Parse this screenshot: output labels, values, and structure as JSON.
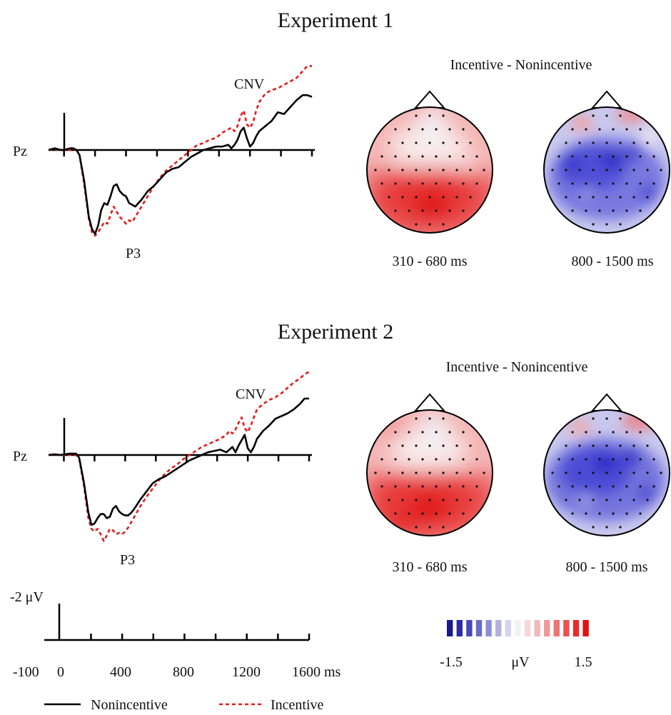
{
  "colors": {
    "nonincentive": "#000000",
    "incentive": "#e41a1c",
    "scale": [
      "#1a1a8c",
      "#2c2ca4",
      "#4848b8",
      "#6a6ac8",
      "#8e8ed6",
      "#b2b2e2",
      "#d4d4ee",
      "#f2f2f4",
      "#f4d8d8",
      "#f2b8b8",
      "#f09898",
      "#ee7474",
      "#ec5050",
      "#e82c2c",
      "#e41010"
    ]
  },
  "legend": {
    "non_label": "Nonincentive",
    "inc_label": "Incentive"
  },
  "scale_bar": {
    "voltage_label": "-2 μV",
    "tick_labels": [
      "-100",
      "0",
      "400",
      "800",
      "1200",
      "1600 ms"
    ]
  },
  "colorbar": {
    "min_label": "-1.5",
    "unit_label": "μV",
    "max_label": "1.5"
  },
  "chart_data": [
    {
      "type": "line",
      "title": "Experiment 1",
      "channel": "Pz",
      "xlim": [
        -100,
        1600
      ],
      "annotations": [
        "CNV",
        "P3"
      ],
      "series": [
        {
          "name": "Nonincentive",
          "x": [
            -100,
            -60,
            -20,
            0,
            20,
            40,
            60,
            80,
            100,
            130,
            160,
            180,
            200,
            220,
            240,
            260,
            280,
            300,
            320,
            340,
            360,
            380,
            400,
            420,
            440,
            460,
            480,
            500,
            540,
            580,
            620,
            660,
            700,
            740,
            780,
            820,
            860,
            900,
            940,
            980,
            1020,
            1060,
            1080,
            1100,
            1120,
            1140,
            1160,
            1180,
            1200,
            1220,
            1240,
            1260,
            1300,
            1340,
            1380,
            1420,
            1460,
            1500,
            1540,
            1570,
            1600
          ],
          "y": [
            0,
            0.1,
            0,
            0,
            0.05,
            0.1,
            0.1,
            0,
            -0.3,
            -1.8,
            -3.9,
            -4.6,
            -4.9,
            -4.4,
            -3.5,
            -3.1,
            -3.2,
            -2.7,
            -2.1,
            -2,
            -2.4,
            -2.6,
            -2.7,
            -3.1,
            -3.2,
            -3.3,
            -3.1,
            -2.9,
            -2.4,
            -2.1,
            -1.7,
            -1.3,
            -1.1,
            -1,
            -0.7,
            -0.4,
            -0.2,
            0,
            0.1,
            0.2,
            0.2,
            0.3,
            0.1,
            0.3,
            0.6,
            1.1,
            1.3,
            0.7,
            0.2,
            0.4,
            0.8,
            1.1,
            1.4,
            1.7,
            2.2,
            2.1,
            2.5,
            2.9,
            3.2,
            3.2,
            3.1
          ]
        },
        {
          "name": "Incentive",
          "x": [
            -100,
            -60,
            -20,
            0,
            40,
            80,
            100,
            130,
            160,
            180,
            200,
            220,
            240,
            260,
            280,
            300,
            320,
            340,
            360,
            380,
            400,
            420,
            440,
            460,
            480,
            500,
            540,
            580,
            620,
            660,
            700,
            740,
            780,
            820,
            860,
            900,
            940,
            980,
            1020,
            1060,
            1080,
            1100,
            1120,
            1140,
            1160,
            1180,
            1200,
            1220,
            1240,
            1260,
            1300,
            1340,
            1380,
            1420,
            1460,
            1500,
            1540,
            1570,
            1600
          ],
          "y": [
            0,
            0.05,
            0,
            0,
            0,
            0,
            -0.3,
            -2,
            -4,
            -4.8,
            -5,
            -4.8,
            -4.5,
            -4.2,
            -4.3,
            -3.8,
            -3.3,
            -3.6,
            -3.9,
            -4.1,
            -4.3,
            -4.1,
            -4.2,
            -3.9,
            -3.6,
            -3.3,
            -2.7,
            -2.1,
            -1.6,
            -1.2,
            -0.9,
            -0.6,
            -0.3,
            0,
            0.3,
            0.4,
            0.6,
            0.7,
            1,
            1.2,
            1.3,
            1.1,
            1.4,
            2,
            2.3,
            1.5,
            1.3,
            1.6,
            2.3,
            2.8,
            3.3,
            3.5,
            3.6,
            3.8,
            4,
            4.2,
            4.6,
            4.9,
            4.9
          ]
        }
      ]
    },
    {
      "type": "line",
      "title": "Experiment 2",
      "channel": "Pz",
      "xlim": [
        -100,
        1600
      ],
      "annotations": [
        "CNV",
        "P3"
      ],
      "series": [
        {
          "name": "Nonincentive",
          "x": [
            -100,
            -60,
            -20,
            0,
            40,
            80,
            100,
            130,
            160,
            180,
            200,
            220,
            240,
            260,
            280,
            300,
            320,
            340,
            360,
            380,
            400,
            420,
            440,
            460,
            500,
            540,
            580,
            620,
            660,
            700,
            740,
            780,
            820,
            860,
            900,
            940,
            980,
            1020,
            1060,
            1080,
            1100,
            1120,
            1140,
            1160,
            1180,
            1200,
            1220,
            1240,
            1260,
            1300,
            1340,
            1380,
            1420,
            1460,
            1500,
            1540,
            1570,
            1600
          ],
          "y": [
            0,
            0.05,
            0,
            0.05,
            0.1,
            0.1,
            -0.2,
            -2,
            -4.3,
            -5.2,
            -5.1,
            -4.7,
            -4.4,
            -4.4,
            -4.7,
            -4.6,
            -4,
            -3.8,
            -4.2,
            -4.4,
            -4.5,
            -4.5,
            -4.3,
            -4,
            -3.3,
            -2.7,
            -2.1,
            -1.8,
            -1.6,
            -1.3,
            -1,
            -0.7,
            -0.4,
            -0.2,
            0,
            0.2,
            0.3,
            0.4,
            0.2,
            0.4,
            0.6,
            0.2,
            0.7,
            1.1,
            1.5,
            0.5,
            0.2,
            0.6,
            1.2,
            1.8,
            2.2,
            2.7,
            2.9,
            3.1,
            3.4,
            3.8,
            4.2,
            4.2
          ]
        },
        {
          "name": "Incentive",
          "x": [
            -100,
            -60,
            -20,
            0,
            40,
            80,
            100,
            130,
            160,
            180,
            200,
            220,
            240,
            260,
            280,
            300,
            320,
            340,
            360,
            380,
            400,
            420,
            440,
            460,
            480,
            500,
            540,
            580,
            620,
            660,
            700,
            740,
            780,
            820,
            860,
            900,
            940,
            980,
            1020,
            1060,
            1080,
            1100,
            1120,
            1140,
            1160,
            1180,
            1200,
            1220,
            1240,
            1260,
            1300,
            1340,
            1380,
            1420,
            1460,
            1500,
            1540,
            1570,
            1600
          ],
          "y": [
            0,
            0.05,
            0,
            0,
            0,
            0,
            -0.3,
            -2.2,
            -4.7,
            -5.5,
            -5.7,
            -5.5,
            -5.9,
            -6.4,
            -6,
            -5.5,
            -5.6,
            -5.9,
            -5.8,
            -5.9,
            -5.7,
            -5.4,
            -5,
            -4.6,
            -4.2,
            -3.8,
            -3.1,
            -2.5,
            -1.9,
            -1.4,
            -1,
            -0.7,
            -0.3,
            0,
            0.3,
            0.6,
            0.8,
            1,
            1.2,
            1.5,
            1.8,
            1.6,
            1.9,
            2.4,
            2.8,
            2,
            1.7,
            2.2,
            2.8,
            3.4,
            3.8,
            4.1,
            4.3,
            4.6,
            5,
            5.4,
            5.7,
            6,
            6.2
          ]
        }
      ]
    },
    {
      "type": "heatmap",
      "title": "Incentive - Nonincentive",
      "panels": [
        "310 - 680 ms",
        "800 - 1500 ms",
        "310 - 680 ms",
        "800 - 1500 ms"
      ],
      "range": [
        -1.5,
        1.5
      ],
      "unit": "μV"
    }
  ]
}
